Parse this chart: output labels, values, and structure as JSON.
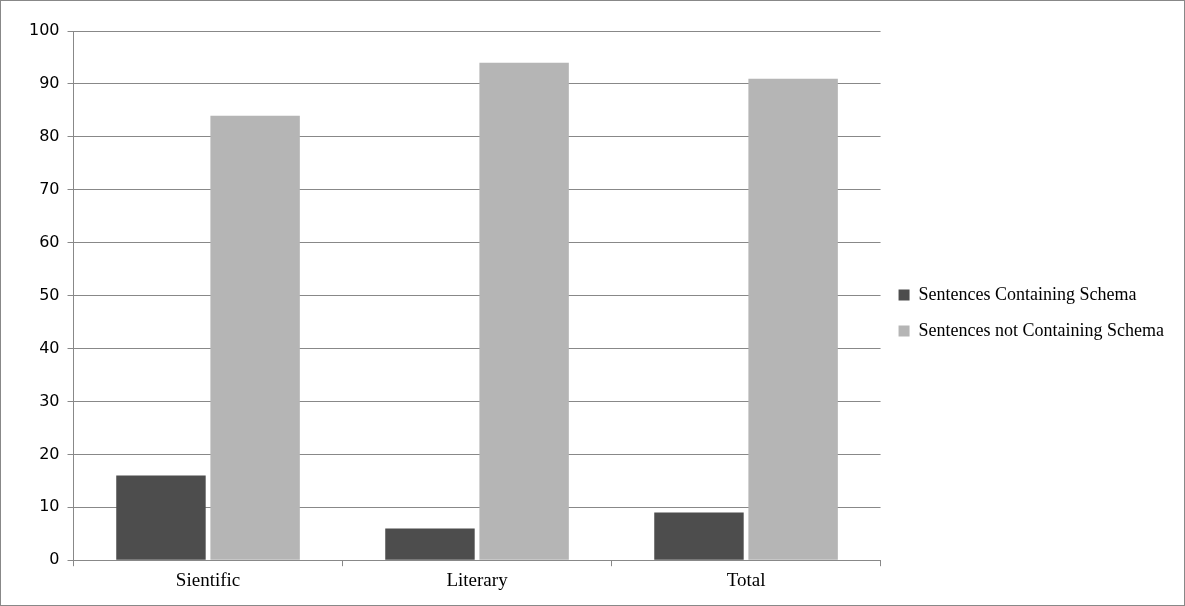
{
  "chart_data": {
    "type": "bar",
    "categories": [
      "Sientific",
      "Literary",
      "Total"
    ],
    "series": [
      {
        "name": "Sentences Containing Schema",
        "color": "#4d4d4d",
        "values": [
          16,
          6,
          9
        ]
      },
      {
        "name": "Sentences not Containing Schema",
        "color": "#b5b5b5",
        "values": [
          84,
          94,
          91
        ]
      }
    ],
    "ylim": [
      0,
      100
    ],
    "yticks": [
      0,
      10,
      20,
      30,
      40,
      50,
      60,
      70,
      80,
      90,
      100
    ],
    "grid": "y",
    "legend": "right"
  }
}
